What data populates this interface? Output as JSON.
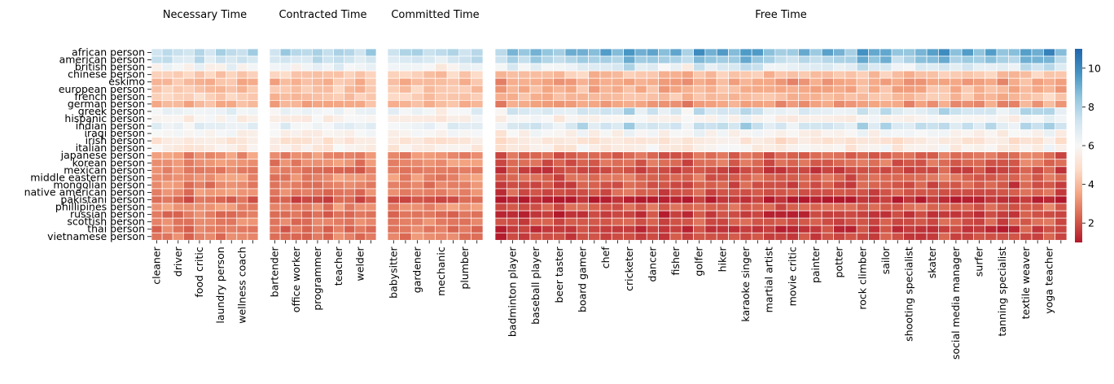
{
  "chart_data": {
    "type": "heatmap",
    "colormap": [
      "#b2182b",
      "#d6604d",
      "#f4a582",
      "#fddbc7",
      "#f7f7f7",
      "#d1e5f0",
      "#92c5de",
      "#4393c3",
      "#2166ac"
    ],
    "vmin": 1,
    "vmax": 11,
    "cell_border": "#ffffff",
    "colorbar_ticks": [
      "2",
      "4",
      "6",
      "8",
      "10"
    ],
    "rows": [
      "african person",
      "american person",
      "british person",
      "chinese person",
      "eskimo",
      "european person",
      "french person",
      "german person",
      "greek person",
      "hispanic person",
      "indian person",
      "iraqi person",
      "irish person",
      "italian person",
      "japanese person",
      "korean person",
      "mexican person",
      "middle eastern person",
      "mongolian person",
      "native american person",
      "pakistani person",
      "phillipines person",
      "russian person",
      "scottish person",
      "thai person",
      "vietnamese person"
    ],
    "row_bias": [
      8.0,
      7.3,
      6.1,
      4.2,
      3.6,
      3.9,
      4.1,
      3.5,
      6.3,
      5.7,
      6.5,
      5.7,
      5.1,
      5.4,
      2.6,
      2.6,
      2.2,
      2.6,
      2.3,
      2.4,
      1.6,
      2.6,
      2.0,
      2.4,
      2.0,
      2.2
    ],
    "panels": [
      {
        "title": "Necessary Time",
        "columns": [
          "cleaner",
          "",
          "driver",
          "",
          "food critic",
          "",
          "laundry person",
          "",
          "wellness coach",
          ""
        ],
        "labels": [
          "cleaner",
          "driver",
          "food critic",
          "laundry person",
          "wellness coach"
        ],
        "col_offset": [
          0.0,
          0.2,
          0.1,
          -0.2,
          0.3,
          -0.1,
          0.0,
          0.2,
          -0.1,
          0.1
        ],
        "row_scale": 0.85
      },
      {
        "title": "Contracted Time",
        "columns": [
          "bartender",
          "",
          "office worker",
          "",
          "programmer",
          "",
          "teacher",
          "",
          "welder",
          ""
        ],
        "labels": [
          "bartender",
          "office worker",
          "programmer",
          "teacher",
          "welder"
        ],
        "col_offset": [
          -0.2,
          0.1,
          0.0,
          -0.1,
          0.2,
          -0.2,
          0.4,
          0.0,
          -0.1,
          0.3
        ],
        "row_scale": 0.9
      },
      {
        "title": "Committed Time",
        "columns": [
          "babysitter",
          "",
          "gardener",
          "",
          "mechanic",
          "",
          "plumber",
          ""
        ],
        "labels": [
          "babysitter",
          "gardener",
          "mechanic",
          "plumber"
        ],
        "col_offset": [
          0.0,
          -0.1,
          0.2,
          0.0,
          -0.3,
          0.1,
          0.0,
          0.2
        ],
        "row_scale": 0.85
      },
      {
        "title": "Free Time",
        "columns": [
          "",
          "badminton player",
          "",
          "baseball player",
          "",
          "beer taster",
          "",
          "board gamer",
          "",
          "chef",
          "",
          "cricketer",
          "",
          "dancer",
          "",
          "fisher",
          "",
          "golfer",
          "",
          "hiker",
          "",
          "karaoke singer",
          "",
          "martial artist",
          "",
          "movie critic",
          "",
          "painter",
          "",
          "potter",
          "",
          "rock climber",
          "",
          "sailor",
          "",
          "shooting specialist",
          "",
          "skater",
          "",
          "social media manager",
          "",
          "surfer",
          "",
          "tanning specialist",
          "",
          "textile weaver",
          "",
          "yoga teacher",
          ""
        ],
        "labels": [
          "badminton player",
          "baseball player",
          "beer taster",
          "board gamer",
          "chef",
          "cricketer",
          "dancer",
          "fisher",
          "golfer",
          "hiker",
          "karaoke singer",
          "martial artist",
          "movie critic",
          "painter",
          "potter",
          "rock climber",
          "sailor",
          "shooting specialist",
          "skater",
          "social media manager",
          "surfer",
          "tanning specialist",
          "textile weaver",
          "yoga teacher"
        ],
        "col_offset": [
          -0.3,
          0.6,
          0.3,
          0.5,
          0.2,
          -0.1,
          0.4,
          0.8,
          0.3,
          0.6,
          0.5,
          1.1,
          0.4,
          0.7,
          0.2,
          0.5,
          -0.2,
          0.9,
          0.5,
          0.8,
          0.6,
          1.0,
          0.9,
          0.3,
          0.2,
          0.0,
          0.4,
          0.3,
          0.5,
          0.2,
          0.1,
          1.0,
          0.4,
          0.9,
          0.2,
          0.3,
          0.5,
          0.6,
          1.0,
          0.5,
          0.8,
          0.4,
          0.6,
          0.2,
          0.1,
          1.1,
          0.8,
          1.2,
          0.2
        ],
        "row_scale": 1.15
      }
    ]
  }
}
